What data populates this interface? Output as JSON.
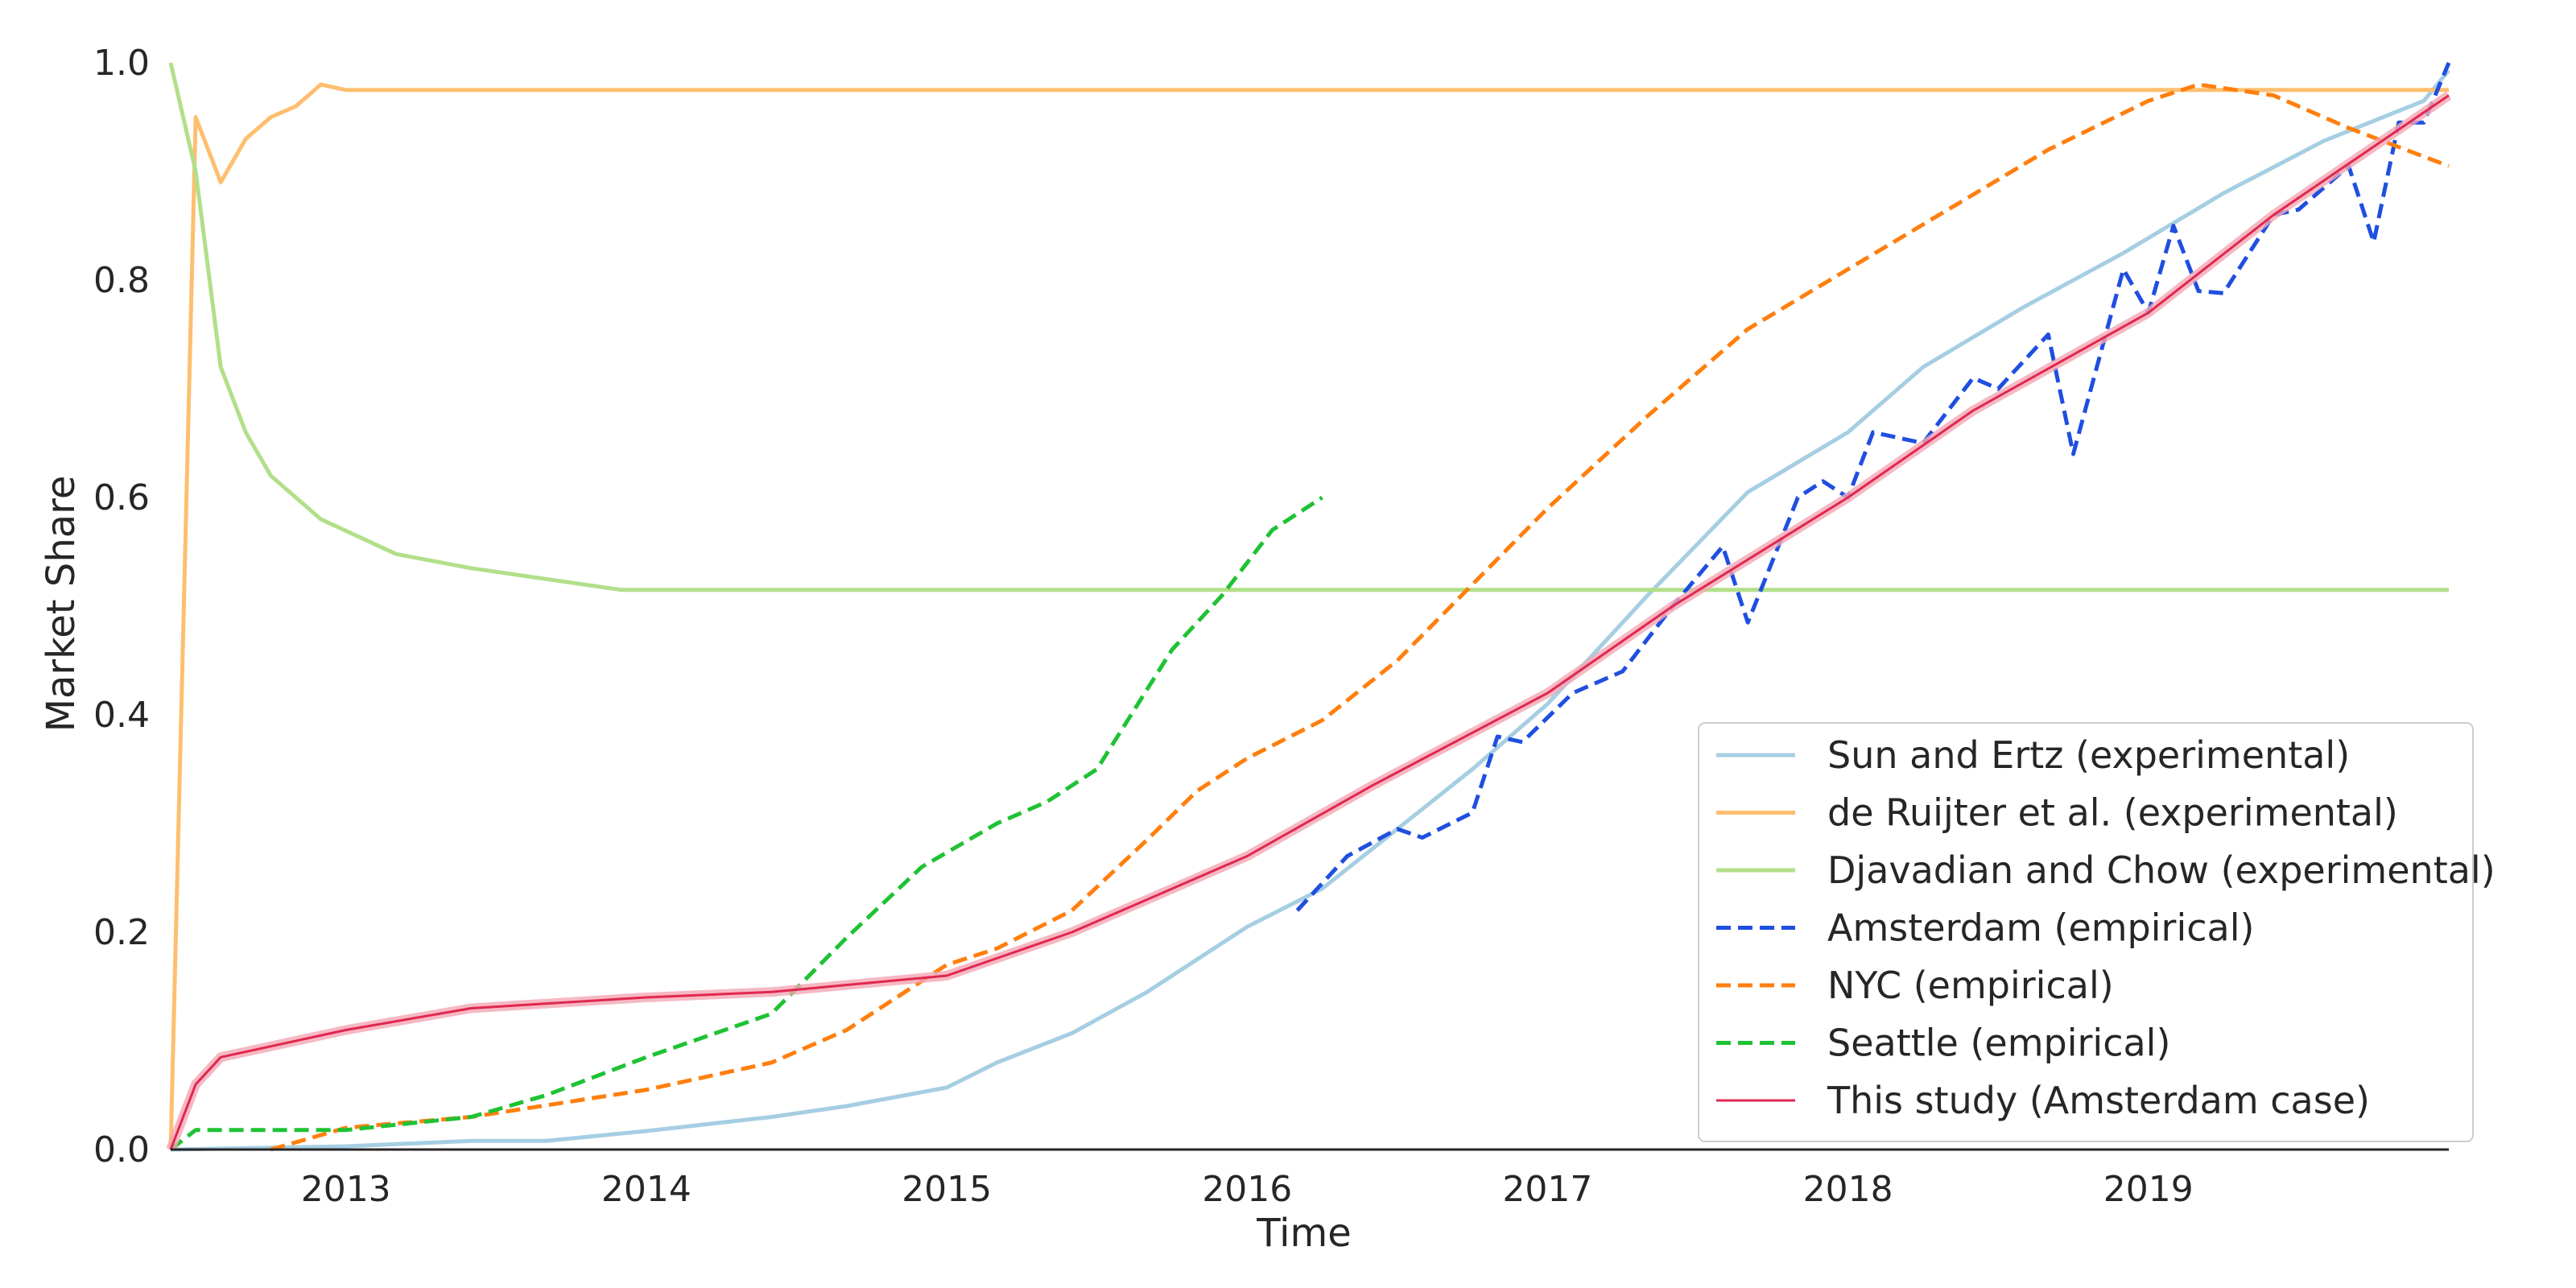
{
  "chart_data": {
    "type": "line",
    "title": "",
    "xlabel": "Time",
    "ylabel": "Market Share",
    "xlim": [
      "2012-06",
      "2020-01"
    ],
    "ylim": [
      0.0,
      1.0
    ],
    "x_ticks": [
      "2013",
      "2014",
      "2015",
      "2016",
      "2017",
      "2018",
      "2019"
    ],
    "y_ticks": [
      "0.0",
      "0.2",
      "0.4",
      "0.6",
      "0.8",
      "1.0"
    ],
    "grid": false,
    "legend_position": "lower-right",
    "series": [
      {
        "name": "Sun and Ertz (experimental)",
        "color": "#a6cee3",
        "style": "solid",
        "points": [
          [
            "2012-06",
            0.0
          ],
          [
            "2013-01",
            0.003
          ],
          [
            "2013-06",
            0.008
          ],
          [
            "2013-09",
            0.008
          ],
          [
            "2014-01",
            0.017
          ],
          [
            "2014-06",
            0.03
          ],
          [
            "2014-09",
            0.04
          ],
          [
            "2015-01",
            0.057
          ],
          [
            "2015-03",
            0.08
          ],
          [
            "2015-06",
            0.107
          ],
          [
            "2015-09",
            0.145
          ],
          [
            "2016-01",
            0.205
          ],
          [
            "2016-04",
            0.24
          ],
          [
            "2016-07",
            0.295
          ],
          [
            "2016-10",
            0.35
          ],
          [
            "2017-01",
            0.41
          ],
          [
            "2017-05",
            0.51
          ],
          [
            "2017-09",
            0.605
          ],
          [
            "2018-01",
            0.66
          ],
          [
            "2018-04",
            0.72
          ],
          [
            "2018-08",
            0.775
          ],
          [
            "2018-12",
            0.825
          ],
          [
            "2019-04",
            0.88
          ],
          [
            "2019-08",
            0.928
          ],
          [
            "2019-12",
            0.965
          ],
          [
            "2020-01",
            0.993
          ]
        ]
      },
      {
        "name": "de Ruijter et al. (experimental)",
        "color": "#fdbf6f",
        "style": "solid",
        "points": [
          [
            "2012-06",
            0.0
          ],
          [
            "2012-07",
            0.95
          ],
          [
            "2012-08",
            0.89
          ],
          [
            "2012-09",
            0.93
          ],
          [
            "2012-10",
            0.95
          ],
          [
            "2012-11",
            0.96
          ],
          [
            "2012-12",
            0.98
          ],
          [
            "2013-01",
            0.975
          ],
          [
            "2020-01",
            0.975
          ]
        ]
      },
      {
        "name": "Djavadian and Chow (experimental)",
        "color": "#b2df8a",
        "style": "solid",
        "points": [
          [
            "2012-06",
            1.0
          ],
          [
            "2012-07",
            0.9
          ],
          [
            "2012-08",
            0.72
          ],
          [
            "2012-09",
            0.66
          ],
          [
            "2012-10",
            0.62
          ],
          [
            "2012-12",
            0.58
          ],
          [
            "2013-03",
            0.548
          ],
          [
            "2013-06",
            0.535
          ],
          [
            "2013-09",
            0.525
          ],
          [
            "2013-12",
            0.515
          ],
          [
            "2020-01",
            0.515
          ]
        ]
      },
      {
        "name": "Amsterdam (empirical)",
        "color": "#1f4fe0",
        "style": "dashed",
        "points": [
          [
            "2016-03",
            0.22
          ],
          [
            "2016-05",
            0.27
          ],
          [
            "2016-07",
            0.295
          ],
          [
            "2016-08",
            0.287
          ],
          [
            "2016-10",
            0.31
          ],
          [
            "2016-11",
            0.38
          ],
          [
            "2016-12",
            0.375
          ],
          [
            "2017-02",
            0.42
          ],
          [
            "2017-04",
            0.44
          ],
          [
            "2017-06",
            0.5
          ],
          [
            "2017-08",
            0.555
          ],
          [
            "2017-09",
            0.485
          ],
          [
            "2017-11",
            0.6
          ],
          [
            "2017-12",
            0.615
          ],
          [
            "2018-01",
            0.6
          ],
          [
            "2018-02",
            0.66
          ],
          [
            "2018-04",
            0.65
          ],
          [
            "2018-06",
            0.71
          ],
          [
            "2018-07",
            0.7
          ],
          [
            "2018-09",
            0.75
          ],
          [
            "2018-10",
            0.64
          ],
          [
            "2018-12",
            0.81
          ],
          [
            "2019-01",
            0.77
          ],
          [
            "2019-02",
            0.85
          ],
          [
            "2019-03",
            0.79
          ],
          [
            "2019-04",
            0.788
          ],
          [
            "2019-06",
            0.86
          ],
          [
            "2019-07",
            0.865
          ],
          [
            "2019-09",
            0.905
          ],
          [
            "2019-10",
            0.835
          ],
          [
            "2019-11",
            0.945
          ],
          [
            "2019-12",
            0.945
          ],
          [
            "2020-01",
            1.0
          ]
        ]
      },
      {
        "name": "NYC (empirical)",
        "color": "#ff7f0e",
        "style": "dashed",
        "points": [
          [
            "2012-10",
            0.0
          ],
          [
            "2013-01",
            0.02
          ],
          [
            "2013-06",
            0.03
          ],
          [
            "2014-01",
            0.055
          ],
          [
            "2014-06",
            0.08
          ],
          [
            "2014-09",
            0.11
          ],
          [
            "2015-01",
            0.17
          ],
          [
            "2015-03",
            0.185
          ],
          [
            "2015-06",
            0.22
          ],
          [
            "2015-09",
            0.285
          ],
          [
            "2015-11",
            0.33
          ],
          [
            "2016-01",
            0.36
          ],
          [
            "2016-04",
            0.395
          ],
          [
            "2016-07",
            0.45
          ],
          [
            "2016-10",
            0.52
          ],
          [
            "2017-01",
            0.59
          ],
          [
            "2017-05",
            0.675
          ],
          [
            "2017-09",
            0.755
          ],
          [
            "2018-01",
            0.81
          ],
          [
            "2018-05",
            0.865
          ],
          [
            "2018-09",
            0.92
          ],
          [
            "2019-01",
            0.965
          ],
          [
            "2019-03",
            0.98
          ],
          [
            "2019-06",
            0.97
          ],
          [
            "2019-09",
            0.94
          ],
          [
            "2020-01",
            0.905
          ]
        ]
      },
      {
        "name": "Seattle (empirical)",
        "color": "#1fc234",
        "style": "dashed",
        "points": [
          [
            "2012-06",
            0.0
          ],
          [
            "2012-07",
            0.018
          ],
          [
            "2013-01",
            0.018
          ],
          [
            "2013-06",
            0.03
          ],
          [
            "2013-09",
            0.05
          ],
          [
            "2014-01",
            0.085
          ],
          [
            "2014-06",
            0.125
          ],
          [
            "2014-09",
            0.195
          ],
          [
            "2014-12",
            0.26
          ],
          [
            "2015-03",
            0.3
          ],
          [
            "2015-05",
            0.32
          ],
          [
            "2015-07",
            0.35
          ],
          [
            "2015-10",
            0.46
          ],
          [
            "2015-12",
            0.51
          ],
          [
            "2016-02",
            0.57
          ],
          [
            "2016-04",
            0.6
          ]
        ]
      },
      {
        "name": "This study (Amsterdam case)",
        "color": "#e0274f",
        "style": "solid",
        "points": [
          [
            "2012-06",
            0.0
          ],
          [
            "2012-07",
            0.06
          ],
          [
            "2012-08",
            0.085
          ],
          [
            "2013-01",
            0.11
          ],
          [
            "2013-06",
            0.13
          ],
          [
            "2014-01",
            0.14
          ],
          [
            "2014-06",
            0.145
          ],
          [
            "2015-01",
            0.16
          ],
          [
            "2015-06",
            0.2
          ],
          [
            "2016-01",
            0.27
          ],
          [
            "2016-06",
            0.335
          ],
          [
            "2017-01",
            0.42
          ],
          [
            "2017-06",
            0.5
          ],
          [
            "2018-01",
            0.6
          ],
          [
            "2018-06",
            0.68
          ],
          [
            "2019-01",
            0.77
          ],
          [
            "2019-06",
            0.86
          ],
          [
            "2020-01",
            0.97
          ]
        ]
      }
    ]
  }
}
